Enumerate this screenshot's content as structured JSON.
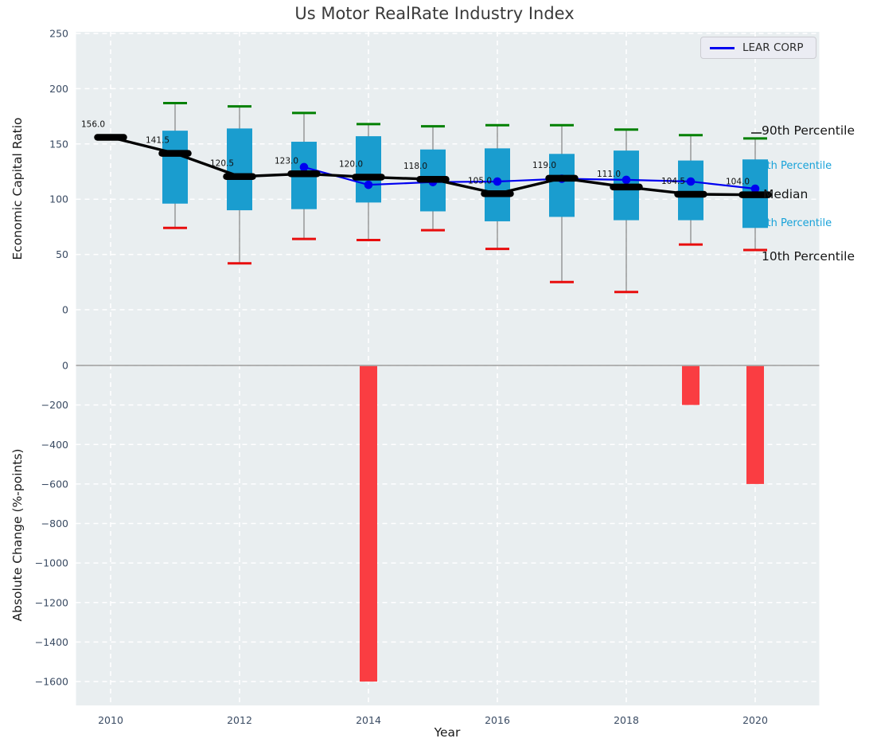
{
  "title": "Us Motor RealRate Industry Index",
  "legend": {
    "label": "LEAR CORP"
  },
  "axes": {
    "top_ylabel": "Economic Capital Ratio",
    "bottom_ylabel": "Absolute Change (%-points)",
    "xlabel": "Year"
  },
  "annotations": {
    "p90": "90th Percentile",
    "p75": "75th Percentile",
    "median": "Median",
    "p25": "25th Percentile",
    "p10": "10th Percentile"
  },
  "colors": {
    "plot_bg": "#e9eef0",
    "grid": "#ffffff",
    "box_fill": "#1a9dcf",
    "whisker": "#8a8a8a",
    "cap_high": "#008000",
    "cap_low": "#e80d0d",
    "median_line": "#000000",
    "lear_line": "#0000f0",
    "bar_fill": "#fa3d42",
    "zero_line": "#a8a8a8",
    "tick_label": "#3a4b63",
    "title_color": "#3a3a3a",
    "annotation_cyan": "#18a2d9"
  },
  "chart_data": {
    "type": "boxplot+line+bar",
    "title": "Us Motor RealRate Industry Index",
    "xlabel": "Year",
    "xticks": [
      2010,
      2012,
      2014,
      2016,
      2018,
      2020
    ],
    "grid": true,
    "legend_position": "top-right",
    "top_panel": {
      "type": "boxplot+line",
      "ylabel": "Economic Capital Ratio",
      "yticks": [
        250,
        200,
        150,
        100,
        50,
        0
      ],
      "ylim": [
        -30,
        252
      ],
      "boxes": [
        {
          "year": 2010,
          "p90": null,
          "p75": null,
          "median": 156.0,
          "p25": null,
          "p10": null
        },
        {
          "year": 2011,
          "p90": 187,
          "p75": 162,
          "median": 141.5,
          "p25": 96,
          "p10": 74
        },
        {
          "year": 2012,
          "p90": 184,
          "p75": 164,
          "median": 120.5,
          "p25": 90,
          "p10": 42
        },
        {
          "year": 2013,
          "p90": 178,
          "p75": 152,
          "median": 123.0,
          "p25": 91,
          "p10": 64
        },
        {
          "year": 2014,
          "p90": 168,
          "p75": 157,
          "median": 120.0,
          "p25": 97,
          "p10": 63
        },
        {
          "year": 2015,
          "p90": 166,
          "p75": 145,
          "median": 118.0,
          "p25": 89,
          "p10": 72
        },
        {
          "year": 2016,
          "p90": 167,
          "p75": 146,
          "median": 105.0,
          "p25": 80,
          "p10": 55
        },
        {
          "year": 2017,
          "p90": 167,
          "p75": 141,
          "median": 119.0,
          "p25": 84,
          "p10": 25
        },
        {
          "year": 2018,
          "p90": 163,
          "p75": 144,
          "median": 111.0,
          "p25": 81,
          "p10": 16
        },
        {
          "year": 2019,
          "p90": 158,
          "p75": 135,
          "median": 104.5,
          "p25": 81,
          "p10": 59
        },
        {
          "year": 2020,
          "p90": 155,
          "p75": 136,
          "median": 104.0,
          "p25": 74,
          "p10": 54
        }
      ],
      "median_annotations": [
        "156.0",
        "141.5",
        "120.5",
        "123.0",
        "120.0",
        "118.0",
        "105.0",
        "119.0",
        "111.0",
        "104.5",
        "104.0"
      ],
      "series": [
        {
          "name": "LEAR CORP",
          "x": [
            2013,
            2014,
            2015,
            2016,
            2017,
            2018,
            2019,
            2020
          ],
          "values": [
            129,
            113,
            115.5,
            116,
            118.5,
            117.5,
            116,
            109.5
          ]
        }
      ]
    },
    "bottom_panel": {
      "type": "bar",
      "ylabel": "Absolute Change (%-points)",
      "yticks": [
        0,
        -200,
        -400,
        -600,
        -800,
        -1000,
        -1200,
        -1400,
        -1600
      ],
      "ylim": [
        -1720,
        100
      ],
      "bars": {
        "years": [
          2014,
          2019,
          2020
        ],
        "values": [
          -1600,
          -200,
          -600
        ]
      }
    }
  }
}
